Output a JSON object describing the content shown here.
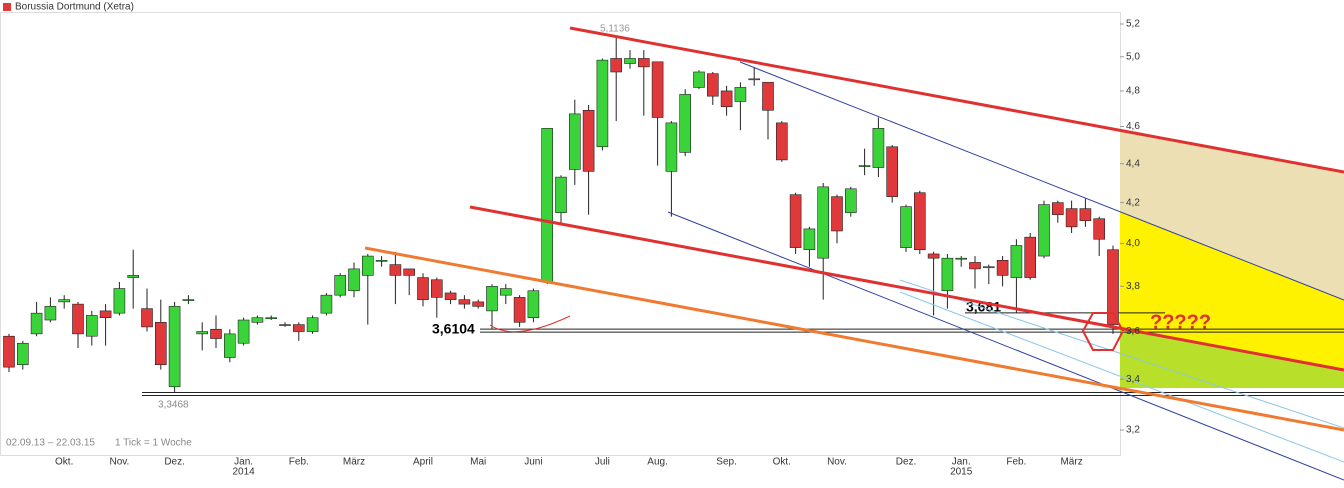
{
  "chart_data": {
    "type": "candlestick",
    "title": "Borussia Dortmund (Xetra)",
    "date_range": "02.09.13 – 22.03.15",
    "tick_note": "1 Tick = 1 Woche",
    "categories": [
      null,
      null,
      null,
      null,
      "Okt.",
      null,
      null,
      null,
      "Nov.",
      null,
      null,
      null,
      "Dez.",
      null,
      null,
      null,
      null,
      "Jan.",
      null,
      null,
      null,
      "Feb.",
      null,
      null,
      null,
      "März",
      null,
      null,
      null,
      null,
      "April",
      null,
      null,
      null,
      "Mai",
      null,
      null,
      null,
      "Juni",
      null,
      null,
      null,
      null,
      "Juli",
      null,
      null,
      null,
      "Aug.",
      null,
      null,
      null,
      null,
      "Sep.",
      null,
      null,
      null,
      "Okt.",
      null,
      null,
      null,
      "Nov.",
      null,
      null,
      null,
      null,
      "Dez.",
      null,
      null,
      null,
      "Jan.",
      null,
      null,
      null,
      "Feb.",
      null,
      null,
      null,
      "März",
      null,
      null,
      null
    ],
    "year_labels": [
      "2014",
      "2015"
    ],
    "open": [
      3.58,
      3.46,
      3.59,
      3.65,
      3.73,
      3.72,
      3.58,
      3.69,
      3.68,
      3.84,
      3.7,
      3.64,
      3.37,
      3.74,
      3.59,
      3.61,
      3.49,
      3.55,
      3.64,
      3.66,
      3.63,
      3.63,
      3.6,
      3.68,
      3.76,
      3.78,
      3.85,
      3.92,
      3.9,
      3.88,
      3.84,
      3.83,
      3.77,
      3.74,
      3.73,
      3.69,
      3.76,
      3.75,
      3.66,
      3.82,
      4.15,
      4.37,
      4.69,
      4.49,
      4.99,
      4.96,
      4.99,
      4.97,
      4.36,
      4.46,
      4.82,
      4.9,
      4.8,
      4.74,
      4.87,
      4.85,
      4.62,
      4.24,
      3.97,
      3.93,
      4.23,
      4.15,
      4.39,
      4.38,
      4.49,
      3.98,
      4.25,
      3.95,
      3.78,
      3.93,
      3.91,
      3.89,
      3.92,
      3.84,
      4.03,
      3.94,
      4.2,
      4.17,
      4.17,
      4.12,
      3.97
    ],
    "high": [
      3.59,
      3.56,
      3.73,
      3.75,
      3.76,
      3.73,
      3.69,
      3.72,
      3.82,
      3.97,
      3.79,
      3.74,
      3.73,
      3.76,
      3.64,
      3.67,
      3.61,
      3.66,
      3.67,
      3.67,
      3.64,
      3.64,
      3.67,
      3.77,
      3.86,
      3.91,
      3.95,
      3.94,
      3.96,
      3.88,
      3.86,
      3.84,
      3.78,
      3.76,
      3.74,
      3.81,
      3.81,
      3.76,
      3.79,
      4.59,
      4.34,
      4.75,
      4.72,
      4.99,
      5.1136,
      5.04,
      5.04,
      4.97,
      4.63,
      4.81,
      4.92,
      4.91,
      4.83,
      4.85,
      4.94,
      4.85,
      4.63,
      4.25,
      4.08,
      4.3,
      4.24,
      4.28,
      4.48,
      4.65,
      4.5,
      4.19,
      4.26,
      3.96,
      3.95,
      3.94,
      3.94,
      3.9,
      3.94,
      4.02,
      4.05,
      4.21,
      4.21,
      4.21,
      4.22,
      4.13,
      3.99
    ],
    "low": [
      3.43,
      3.44,
      3.58,
      3.64,
      3.7,
      3.53,
      3.54,
      3.54,
      3.67,
      3.7,
      3.6,
      3.44,
      3.3468,
      3.72,
      3.52,
      3.53,
      3.47,
      3.54,
      3.63,
      3.65,
      3.62,
      3.56,
      3.59,
      3.67,
      3.75,
      3.75,
      3.63,
      3.89,
      3.72,
      3.76,
      3.71,
      3.66,
      3.72,
      3.7,
      3.7,
      3.6104,
      3.72,
      3.62,
      3.64,
      3.81,
      4.1,
      4.29,
      4.14,
      4.47,
      4.63,
      4.93,
      4.66,
      4.39,
      4.13,
      4.44,
      4.81,
      4.72,
      4.66,
      4.58,
      4.83,
      4.53,
      4.41,
      3.95,
      3.89,
      3.74,
      4.0,
      4.13,
      4.34,
      4.33,
      4.2,
      3.96,
      3.95,
      3.67,
      3.7,
      3.89,
      3.79,
      3.81,
      3.8,
      3.681,
      3.83,
      3.93,
      4.1,
      4.05,
      4.08,
      3.94,
      3.59
    ],
    "close": [
      3.45,
      3.55,
      3.68,
      3.71,
      3.74,
      3.59,
      3.67,
      3.66,
      3.79,
      3.85,
      3.62,
      3.46,
      3.71,
      3.74,
      3.6,
      3.57,
      3.59,
      3.65,
      3.66,
      3.66,
      3.63,
      3.6,
      3.66,
      3.76,
      3.85,
      3.88,
      3.94,
      3.92,
      3.85,
      3.85,
      3.74,
      3.75,
      3.74,
      3.72,
      3.71,
      3.8,
      3.79,
      3.64,
      3.78,
      4.59,
      4.33,
      4.67,
      4.36,
      4.98,
      4.91,
      4.99,
      4.94,
      4.65,
      4.62,
      4.78,
      4.91,
      4.77,
      4.71,
      4.82,
      4.87,
      4.69,
      4.42,
      3.98,
      4.07,
      4.28,
      4.06,
      4.27,
      4.39,
      4.59,
      4.23,
      4.18,
      3.97,
      3.93,
      3.93,
      3.93,
      3.88,
      3.89,
      3.85,
      3.99,
      3.84,
      4.19,
      4.14,
      4.08,
      4.11,
      4.02,
      3.63
    ],
    "up_color": "#3ad43a",
    "down_color": "#e0393c",
    "levels": [
      {
        "value": 3.3468,
        "label": "3,3468"
      },
      {
        "value": 5.1136,
        "label": "5,1136"
      },
      {
        "value": 3.6104,
        "label": "3,6104"
      },
      {
        "value": 3.681,
        "label": "3,681"
      }
    ],
    "question": "?????",
    "log_scale": true,
    "ylim": [
      3.106,
      5.275
    ],
    "yticks": [
      {
        "value": 3.2,
        "label": "3,2"
      },
      {
        "value": 3.4,
        "label": "3,4"
      },
      {
        "value": 3.6,
        "label": "3,6"
      },
      {
        "value": 3.8,
        "label": "3,8"
      },
      {
        "value": 4.0,
        "label": "4,0"
      },
      {
        "value": 4.2,
        "label": "4,2"
      },
      {
        "value": 4.4,
        "label": "4,4"
      },
      {
        "value": 4.6,
        "label": "4,6"
      },
      {
        "value": 4.8,
        "label": "4,8"
      },
      {
        "value": 5.0,
        "label": "5,0"
      },
      {
        "value": 5.2,
        "label": "5,2"
      }
    ]
  }
}
